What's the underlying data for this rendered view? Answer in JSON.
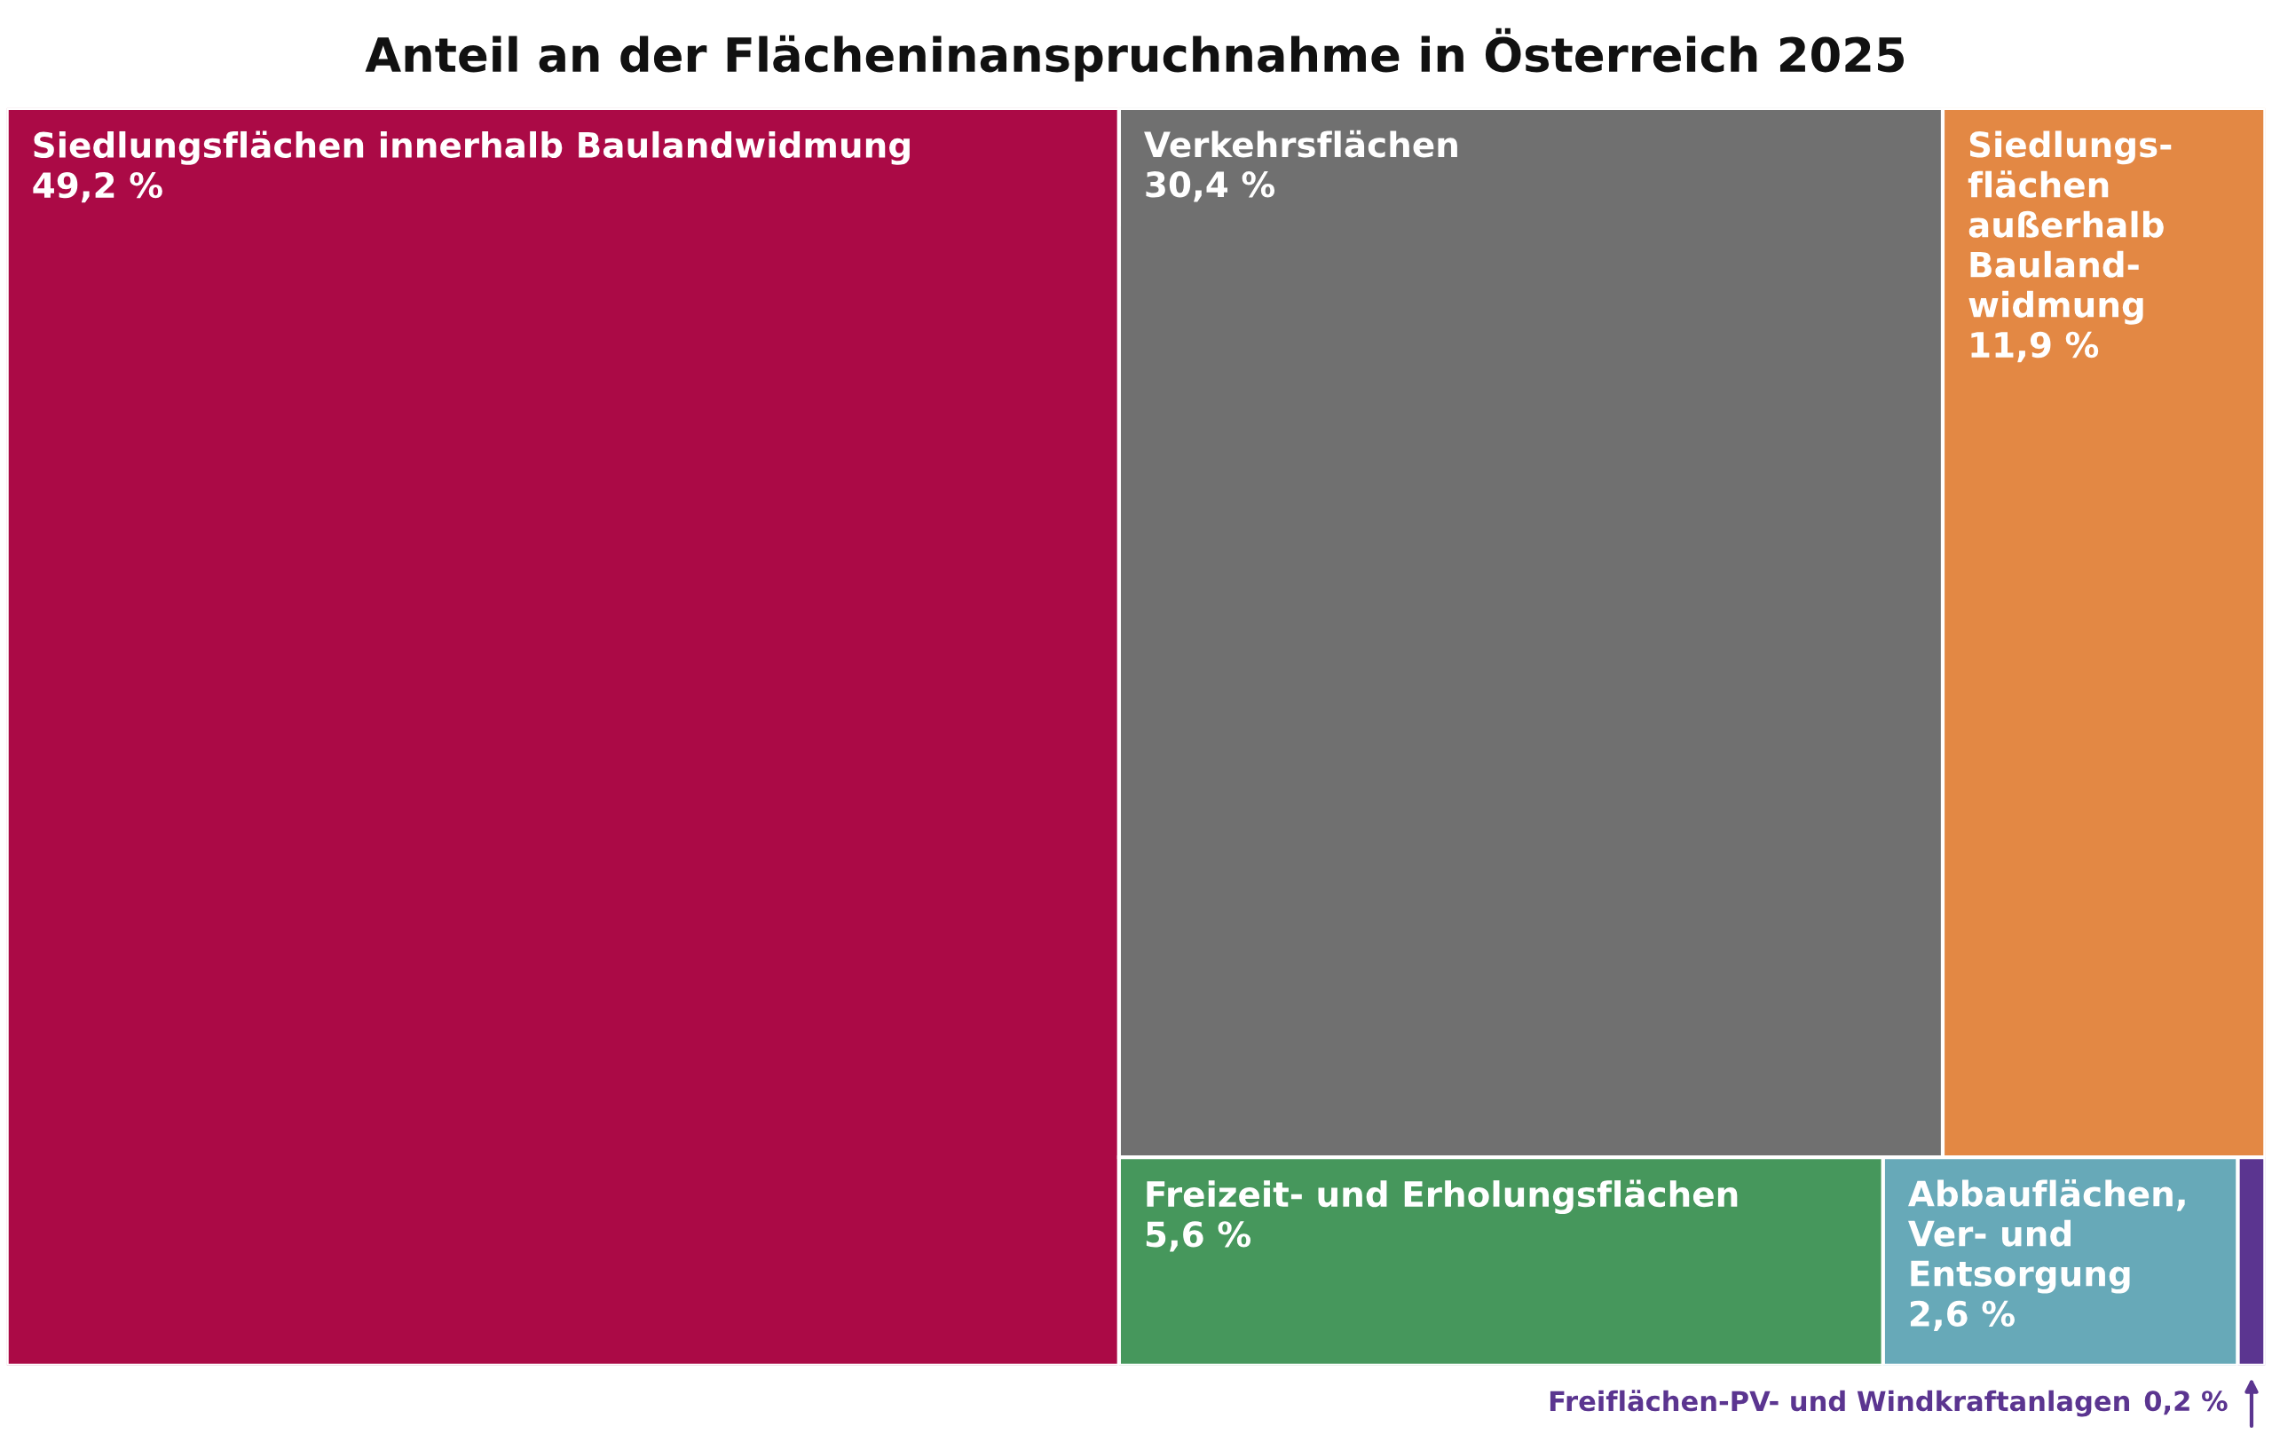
{
  "chart_data": {
    "type": "other",
    "title": "Anteil an der Flächeninanspruchnahme in Österreich 2025",
    "categories": [
      "Siedlungsflächen innerhalb Baulandwidmung",
      "Verkehrsflächen",
      "Siedlungs-\nflächen\naußerhalb\nBauland-\nwidmung",
      "Freizeit- und Erholungsflächen",
      "Abbauflächen,\nVer- und\nEntsorgung",
      "Freiflächen-PV- und Windkraftanlagen"
    ],
    "values": [
      49.2,
      30.4,
      11.9,
      5.6,
      2.6,
      0.2
    ],
    "value_labels": [
      "49,2 %",
      "30,4 %",
      "11,9 %",
      "5,6 %",
      "2,6 %",
      "0,2 %"
    ],
    "colors": [
      "#ab0a46",
      "#707070",
      "#e38844",
      "#46975c",
      "#67a9b8",
      "#5b3590"
    ]
  }
}
